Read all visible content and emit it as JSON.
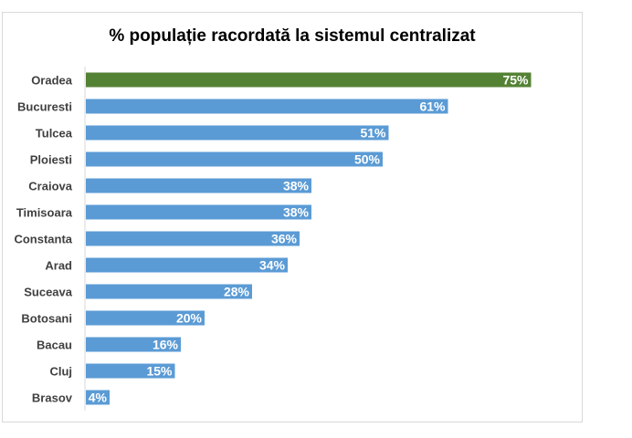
{
  "chart_data": {
    "type": "bar",
    "orientation": "horizontal",
    "title": "% populație racordată la sistemul centralizat",
    "categories": [
      "Oradea",
      "Bucuresti",
      "Tulcea",
      "Ploiesti",
      "Craiova",
      "Timisoara",
      "Constanta",
      "Arad",
      "Suceava",
      "Botosani",
      "Bacau",
      "Cluj",
      "Brasov"
    ],
    "values": [
      75,
      61,
      51,
      50,
      38,
      38,
      36,
      34,
      28,
      20,
      16,
      15,
      4
    ],
    "value_labels": [
      "75%",
      "61%",
      "51%",
      "50%",
      "38%",
      "38%",
      "36%",
      "34%",
      "28%",
      "20%",
      "16%",
      "15%",
      "4%"
    ],
    "xlim": [
      0,
      80
    ],
    "highlight_category": "Oradea",
    "colors": {
      "default": "#5b9bd5",
      "highlight": "#548235"
    },
    "grid": false,
    "legend": "none"
  }
}
